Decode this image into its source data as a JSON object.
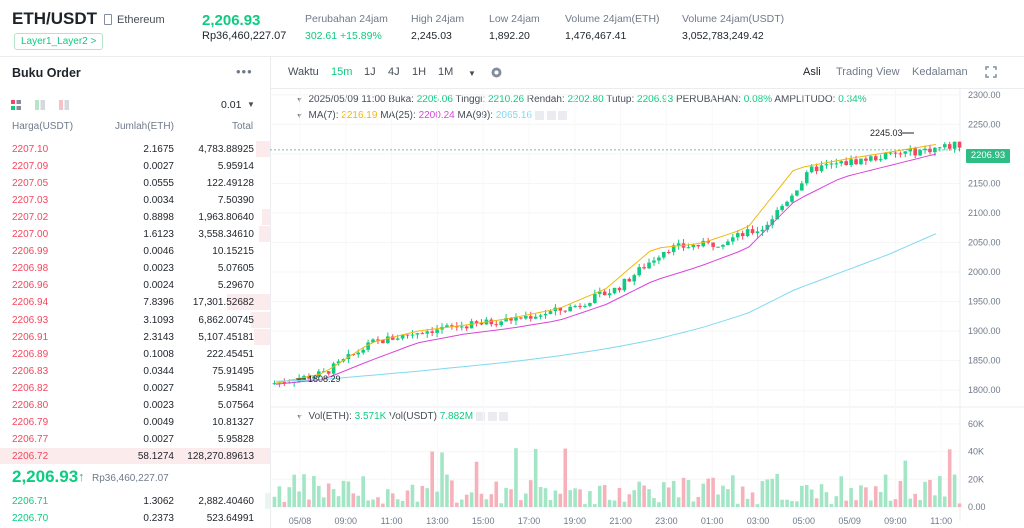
{
  "header": {
    "pair": "ETH/USDT",
    "coin_name": "Ethereum",
    "tag": "Layer1_Layer2",
    "tag_arrow": ">",
    "last_price": "2,206.93",
    "last_price_fiat": "Rp36,460,227.07",
    "stats": [
      {
        "label": "Perubahan 24jam",
        "value": "302.61 +15.89%",
        "color": "green"
      },
      {
        "label": "High 24jam",
        "value": "2,245.03",
        "color": "plain"
      },
      {
        "label": "Low 24jam",
        "value": "1,892.20",
        "color": "plain"
      },
      {
        "label": "Volume 24jam(ETH)",
        "value": "1,476,467.41",
        "color": "plain"
      },
      {
        "label": "Volume 24jam(USDT)",
        "value": "3,052,783,249.42",
        "color": "plain"
      }
    ]
  },
  "orderbook": {
    "title": "Buku Order",
    "more": "•••",
    "step": "0.01",
    "columns": [
      "Harga(USDT)",
      "Jumlah(ETH)",
      "Total"
    ],
    "asks": [
      {
        "p": "2207.10",
        "a": "2.1675",
        "t": "4,783.88925",
        "d": 0.05
      },
      {
        "p": "2207.09",
        "a": "0.0027",
        "t": "5.95914",
        "d": 0
      },
      {
        "p": "2207.05",
        "a": "0.0555",
        "t": "122.49128",
        "d": 0
      },
      {
        "p": "2207.03",
        "a": "0.0034",
        "t": "7.50390",
        "d": 0
      },
      {
        "p": "2207.02",
        "a": "0.8898",
        "t": "1,963.80640",
        "d": 0.03
      },
      {
        "p": "2207.00",
        "a": "1.6123",
        "t": "3,558.34610",
        "d": 0.04
      },
      {
        "p": "2206.99",
        "a": "0.0046",
        "t": "10.15215",
        "d": 0
      },
      {
        "p": "2206.98",
        "a": "0.0023",
        "t": "5.07605",
        "d": 0
      },
      {
        "p": "2206.96",
        "a": "0.0024",
        "t": "5.29670",
        "d": 0
      },
      {
        "p": "2206.94",
        "a": "7.8396",
        "t": "17,301.52682",
        "d": 0.16
      },
      {
        "p": "2206.93",
        "a": "3.1093",
        "t": "6,862.00745",
        "d": 0.07
      },
      {
        "p": "2206.91",
        "a": "2.3143",
        "t": "5,107.45181",
        "d": 0.06
      },
      {
        "p": "2206.89",
        "a": "0.1008",
        "t": "222.45451",
        "d": 0
      },
      {
        "p": "2206.83",
        "a": "0.0344",
        "t": "75.91495",
        "d": 0
      },
      {
        "p": "2206.82",
        "a": "0.0027",
        "t": "5.95841",
        "d": 0
      },
      {
        "p": "2206.80",
        "a": "0.0023",
        "t": "5.07564",
        "d": 0
      },
      {
        "p": "2206.79",
        "a": "0.0049",
        "t": "10.81327",
        "d": 0
      },
      {
        "p": "2206.77",
        "a": "0.0027",
        "t": "5.95828",
        "d": 0
      },
      {
        "p": "2206.72",
        "a": "58.1274",
        "t": "128,270.89613",
        "d": 1.0
      }
    ],
    "mid_price": "2,206.93",
    "mid_arrow": "↑",
    "mid_fiat": "Rp36,460,227.07",
    "bids": [
      {
        "p": "2206.71",
        "a": "1.3062",
        "t": "2,882.40460",
        "d": 0.02
      },
      {
        "p": "2206.70",
        "a": "0.2373",
        "t": "523.64991",
        "d": 0
      }
    ]
  },
  "toolbar": {
    "intervals": [
      "Waktu",
      "15m",
      "1J",
      "4J",
      "1H",
      "1M"
    ],
    "active_interval": "15m",
    "views": [
      "Asli",
      "Trading View",
      "Kedalaman"
    ],
    "active_view": "Asli"
  },
  "chart_info": {
    "date": "2025/05/09 11:00",
    "open_label": "Buka:",
    "open": "2205.06",
    "high_label": "Tinggi:",
    "high": "2210.26",
    "low_label": "Rendah:",
    "low": "2202.80",
    "close_label": "Tutup:",
    "close": "2206.93",
    "change_label": "PERUBAHAN:",
    "change": "0.08%",
    "amp_label": "AMPLITUDO:",
    "amp": "0.34%",
    "ma7_label": "MA(7):",
    "ma7": "2216.19",
    "ma25_label": "MA(25):",
    "ma25": "2200.24",
    "ma99_label": "MA(99):",
    "ma99": "2065.16",
    "vol_label": "Vol(ETH):",
    "vol_eth": "3.571K",
    "volu_label": "Vol(USDT)",
    "vol_usdt": "7.882M",
    "last_tag": "2206.93",
    "high_marker": "2245.03",
    "low_marker": "1808.29"
  },
  "colors": {
    "up": "#0ecb81",
    "down": "#f6465d",
    "ma7": "#f0b90b",
    "ma25": "#d946d9",
    "ma99": "#7fd9f0"
  },
  "chart_data": {
    "type": "line",
    "x": [
      "05/08",
      "09:00",
      "11:00",
      "13:00",
      "15:00",
      "17:00",
      "19:00",
      "21:00",
      "23:00",
      "01:00",
      "03:00",
      "05:00",
      "05/09",
      "09:00",
      "11:00"
    ],
    "price_ticks": [
      2300,
      2250,
      2200,
      2150,
      2100,
      2050,
      2000,
      1950,
      1900,
      1850,
      1800
    ],
    "ylim": [
      1785,
      2310
    ],
    "volume_ticks": [
      "60K",
      "40K",
      "20K",
      "0.00"
    ],
    "volume_ylim": [
      0,
      65000
    ],
    "series": [
      {
        "name": "MA(7)",
        "values": [
          1812,
          1828,
          1880,
          1900,
          1910,
          1922,
          1938,
          1972,
          2040,
          2048,
          2075,
          2175,
          2190,
          2203,
          2216
        ]
      },
      {
        "name": "MA(25)",
        "values": [
          1810,
          1818,
          1850,
          1880,
          1895,
          1905,
          1918,
          1945,
          1985,
          2010,
          2040,
          2120,
          2160,
          2180,
          2200
        ]
      },
      {
        "name": "MA(99)",
        "values": [
          1815,
          1818,
          1825,
          1832,
          1840,
          1848,
          1858,
          1870,
          1885,
          1905,
          1930,
          1970,
          2000,
          2030,
          2065
        ]
      }
    ]
  }
}
